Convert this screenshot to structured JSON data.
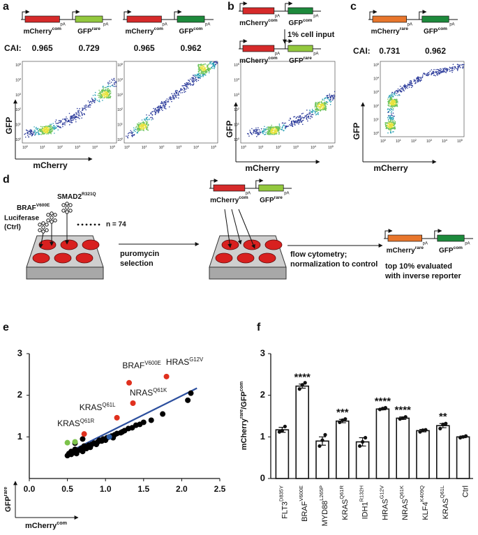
{
  "panel_labels": [
    "a",
    "b",
    "c",
    "d",
    "e",
    "f"
  ],
  "pA": "pA",
  "cai_label": "CAI:",
  "constructs": [
    {
      "genes": [
        {
          "base": "mCherry",
          "sup": "com"
        },
        {
          "base": "GFP",
          "sup": "rare"
        }
      ],
      "colors": [
        "#d62a2a",
        "#93c83e"
      ],
      "cai": [
        0.965,
        0.729
      ]
    },
    {
      "genes": [
        {
          "base": "mCherry",
          "sup": "com"
        },
        {
          "base": "GFP",
          "sup": "com"
        }
      ],
      "colors": [
        "#d62a2a",
        "#1d8a3c"
      ],
      "cai": [
        0.965,
        0.962
      ]
    },
    {
      "genes": [
        {
          "base": "mCherry",
          "sup": "com"
        },
        {
          "base": "GFP",
          "sup": "com"
        }
      ],
      "colors": [
        "#d62a2a",
        "#1d8a3c"
      ]
    },
    {
      "genes": [
        {
          "base": "mCherry",
          "sup": "com"
        },
        {
          "base": "GFP",
          "sup": "rare"
        }
      ],
      "colors": [
        "#d62a2a",
        "#93c83e"
      ]
    },
    {
      "genes": [
        {
          "base": "mCherry",
          "sup": "rare"
        },
        {
          "base": "GFP",
          "sup": "com"
        }
      ],
      "colors": [
        "#e8762c",
        "#1d8a3c"
      ],
      "cai": [
        0.731,
        0.962
      ]
    },
    {
      "genes": [
        {
          "base": "mCherry",
          "sup": "com"
        },
        {
          "base": "GFP",
          "sup": "rare"
        }
      ],
      "colors": [
        "#d62a2a",
        "#93c83e"
      ]
    },
    {
      "genes": [
        {
          "base": "mCherry",
          "sup": "rare"
        },
        {
          "base": "GFP",
          "sup": "com"
        }
      ],
      "colors": [
        "#e8762c",
        "#1d8a3c"
      ]
    }
  ],
  "cell_input": "1% cell input",
  "cytometry": {
    "y_label": "GFP",
    "x_label": "mCherry",
    "log_base": "10",
    "exponents": [
      0,
      1,
      2,
      3,
      4,
      5
    ]
  },
  "screen": {
    "mutants": [
      {
        "base": "SMAD2",
        "sup": "R321Q"
      },
      {
        "base": "BRAF",
        "sup": "V600E"
      }
    ],
    "control": [
      "Luciferase",
      "(Ctrl)"
    ],
    "count": "n = 74",
    "selection": [
      "puromycin",
      "selection"
    ],
    "measurement": [
      "flow cytometry;",
      "normalization to control"
    ],
    "result": [
      "top 10% evaluated",
      "with inverse reporter"
    ]
  },
  "chart_data": [
    {
      "type": "scatter",
      "x_label": {
        "base": "mCherry",
        "sup": "com"
      },
      "y_label": {
        "base": "GFP",
        "sup": "rare"
      },
      "xlim": [
        0,
        2.5
      ],
      "ylim": [
        0,
        3
      ],
      "xticks": [
        {
          "value": 0,
          "label": "0.0"
        },
        0.5,
        {
          "value": 1,
          "label": "1.0"
        },
        1.5,
        {
          "value": 2,
          "label": "2.0"
        },
        2.5
      ],
      "yticks": [
        1,
        2,
        3
      ],
      "series": [
        {
          "color": "#000000",
          "x": [
            0.5,
            0.52,
            0.55,
            0.55,
            0.58,
            0.6,
            0.62,
            0.65,
            0.68,
            0.7,
            0.72,
            0.75,
            0.78,
            0.8,
            0.82,
            0.85,
            0.88,
            0.9,
            0.92,
            0.95,
            0.97,
            1.0,
            1.02,
            1.05,
            1.08,
            1.1,
            1.12,
            1.15,
            1.2,
            1.22,
            1.25,
            1.3,
            1.35,
            1.4,
            1.45,
            1.5,
            1.6,
            1.75,
            2.08,
            2.12,
            0.6,
            0.7
          ],
          "values": [
            0.55,
            0.6,
            0.58,
            0.65,
            0.62,
            0.7,
            0.6,
            0.68,
            0.72,
            0.65,
            0.78,
            0.72,
            0.8,
            0.75,
            0.82,
            0.85,
            0.82,
            0.88,
            0.92,
            0.9,
            0.95,
            0.92,
            0.98,
            1.0,
            1.02,
            0.98,
            1.05,
            1.08,
            1.1,
            1.12,
            1.15,
            1.2,
            1.22,
            1.28,
            1.3,
            1.35,
            1.4,
            1.55,
            1.88,
            2.05,
            0.85,
            0.95
          ]
        },
        {
          "color": "#e0301e",
          "x": [
            0.72,
            1.15,
            1.36,
            1.31,
            1.8
          ],
          "values": [
            1.07,
            1.46,
            1.81,
            2.3,
            2.45
          ],
          "labels": [
            {
              "base": "KRAS",
              "sup": "Q61R"
            },
            {
              "base": "KRAS",
              "sup": "Q61L"
            },
            {
              "base": "NRAS",
              "sup": "Q61K"
            },
            {
              "base": "BRAF",
              "sup": "V600E"
            },
            {
              "base": "HRAS",
              "sup": "G12V"
            }
          ]
        },
        {
          "color": "#7cc24a",
          "x": [
            0.5,
            0.6
          ],
          "values": [
            0.86,
            0.88
          ]
        },
        {
          "color": "#2f5fa8",
          "x": [
            1.05
          ],
          "values": [
            1.0
          ]
        }
      ],
      "fit": {
        "color": "#2c4f9e",
        "x": [
          0.49,
          2.2
        ],
        "values": [
          0.61,
          2.17
        ]
      }
    },
    {
      "type": "bar",
      "y_label": [
        {
          "base": "mCherry",
          "sup": "rare"
        },
        {
          "base": "/GFP",
          "sup": "com"
        }
      ],
      "categories": [
        "FLT3",
        "BRAF",
        "MYD88",
        "KRAS",
        "IDH1",
        "HRAS",
        "NRAS",
        "KLF4",
        "KRAS",
        "Ctrl"
      ],
      "category_superscripts": [
        "D835Y",
        "V600E",
        "L265P",
        "Q61R",
        "R132H",
        "G12V",
        "Q61K",
        "K409Q",
        "Q61L",
        null
      ],
      "values": [
        1.17,
        2.22,
        0.9,
        1.38,
        0.88,
        1.67,
        1.45,
        1.15,
        1.27,
        1.0
      ],
      "errors": [
        0.06,
        0.05,
        0.1,
        0.04,
        0.1,
        0.02,
        0.03,
        0.03,
        0.05,
        0.02
      ],
      "points": [
        [
          1.12,
          1.15,
          1.25
        ],
        [
          2.15,
          2.25,
          2.3
        ],
        [
          0.78,
          0.92,
          1.05
        ],
        [
          1.35,
          1.4,
          1.43
        ],
        [
          0.78,
          0.88,
          0.98
        ],
        [
          1.66,
          1.68,
          1.7
        ],
        [
          1.43,
          1.45,
          1.48
        ],
        [
          1.12,
          1.16,
          1.17
        ],
        [
          1.2,
          1.3,
          1.32
        ],
        [
          0.98,
          1.0,
          1.02
        ]
      ],
      "significance": [
        null,
        "****",
        null,
        "***",
        null,
        "****",
        "****",
        null,
        "**",
        null
      ],
      "ylim": [
        0,
        3
      ],
      "yticks": [
        0,
        1,
        2,
        3
      ],
      "color": "#ffffff"
    }
  ]
}
